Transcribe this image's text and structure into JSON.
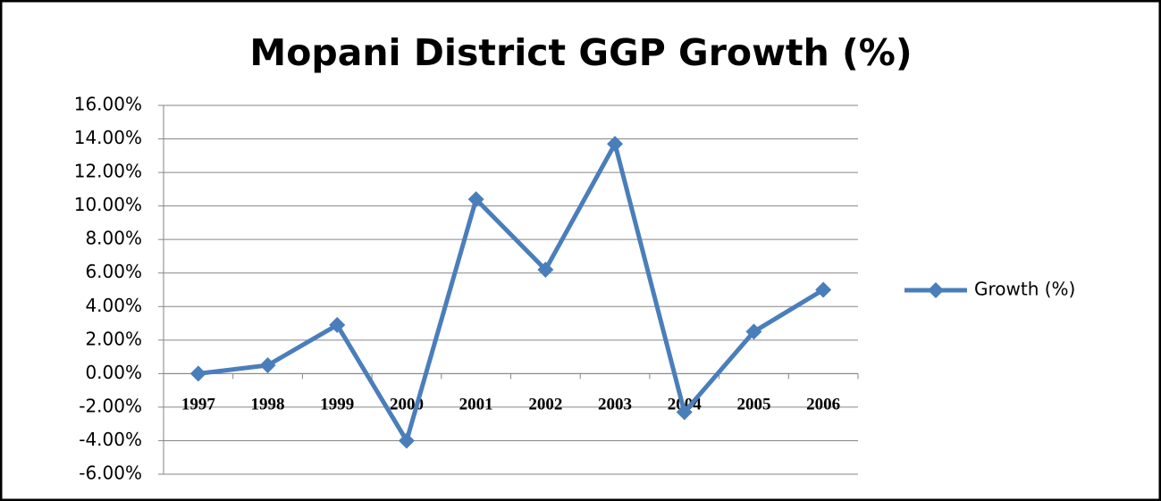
{
  "chart_data": {
    "type": "line",
    "title": "Mopani District GGP Growth (%)",
    "categories": [
      "1997",
      "1998",
      "1999",
      "2000",
      "2001",
      "2002",
      "2003",
      "2004",
      "2005",
      "2006"
    ],
    "series": [
      {
        "name": "Growth (%)",
        "color": "#4a7ebb",
        "values": [
          0,
          0.5,
          2.9,
          -4.0,
          10.4,
          6.2,
          13.7,
          -2.3,
          2.5,
          5.0
        ]
      }
    ],
    "ylim": [
      -6,
      16
    ],
    "yticks": [
      {
        "value": -6,
        "label": "-6.00%"
      },
      {
        "value": -4,
        "label": "-4.00%"
      },
      {
        "value": -2,
        "label": "-2.00%"
      },
      {
        "value": 0,
        "label": "0.00%"
      },
      {
        "value": 2,
        "label": "2.00%"
      },
      {
        "value": 4,
        "label": "4.00%"
      },
      {
        "value": 6,
        "label": "6.00%"
      },
      {
        "value": 8,
        "label": "8.00%"
      },
      {
        "value": 10,
        "label": "10.00%"
      },
      {
        "value": 12,
        "label": "12.00%"
      },
      {
        "value": 14,
        "label": "14.00%"
      },
      {
        "value": 16,
        "label": "16.00%"
      }
    ],
    "grid": true,
    "legend": "right"
  }
}
